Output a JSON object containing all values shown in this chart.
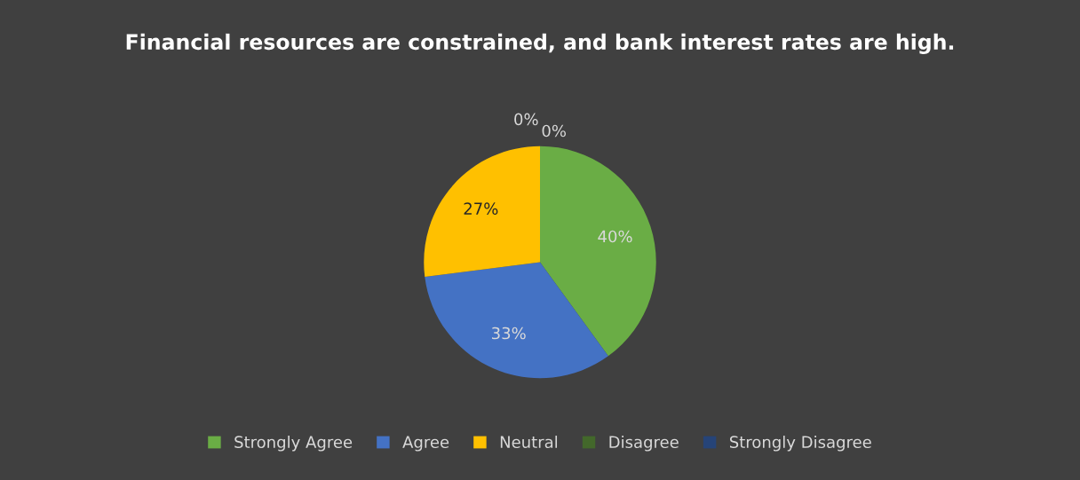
{
  "chart_data": {
    "type": "pie",
    "title": "Financial resources are constrained, and bank interest rates are high.",
    "categories": [
      "Strongly Agree",
      "Agree",
      "Neutral",
      "Disagree",
      "Strongly Disagree"
    ],
    "values": [
      40,
      33,
      27,
      0,
      0
    ],
    "colors": [
      "#6aad45",
      "#4472c4",
      "#ffc000",
      "#43682b",
      "#264478"
    ],
    "value_labels": [
      "40%",
      "33%",
      "27%",
      "0%",
      "0%"
    ],
    "legend": "bottom"
  }
}
